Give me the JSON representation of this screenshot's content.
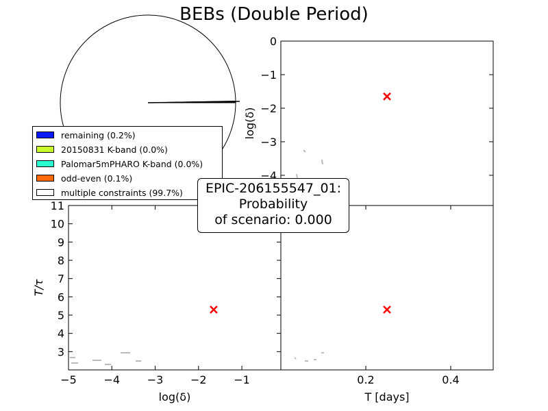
{
  "figure": {
    "title": "BEBs (Double Period)"
  },
  "pie": {
    "slices": [
      {
        "label": "remaining (0.2%)",
        "percent": 0.2,
        "color": "#0a1aff"
      },
      {
        "label": "20150831 K-band (0.0%)",
        "percent": 0.0,
        "color": "#c8ff2a"
      },
      {
        "label": "Palomar5mPHARO K-band (0.0%)",
        "percent": 0.0,
        "color": "#2affd2"
      },
      {
        "label": "odd-even (0.1%)",
        "percent": 0.1,
        "color": "#ff6a0a"
      },
      {
        "label": "multiple constraints (99.7%)",
        "percent": 99.7,
        "color": "#ffffff"
      }
    ]
  },
  "annotation": {
    "line1": "EPIC-206155547_01:",
    "line2": "Probability",
    "line3": "of scenario: 0.000"
  },
  "chart_data": [
    {
      "type": "scatter",
      "panel": "top-right",
      "ylabel": "log(δ)",
      "ylim": [
        -4.9,
        0
      ],
      "yticks": [
        0,
        -1,
        -2,
        -3,
        -4
      ],
      "xlim": [
        0,
        0.5
      ],
      "marker": {
        "x": 0.25,
        "y": -1.65,
        "color": "#ff0000",
        "symbol": "x"
      }
    },
    {
      "type": "scatter",
      "panel": "bottom-left",
      "xlabel": "log(δ)",
      "ylabel": "T/τ",
      "xlim": [
        -5,
        -0.1
      ],
      "ylim": [
        2,
        11
      ],
      "xticks": [
        -5,
        -4,
        -3,
        -2,
        -1
      ],
      "yticks": [
        3,
        4,
        5,
        6,
        7,
        8,
        9,
        10,
        11
      ],
      "marker": {
        "x": -1.65,
        "y": 5.3,
        "color": "#ff0000",
        "symbol": "x"
      }
    },
    {
      "type": "scatter",
      "panel": "bottom-right",
      "xlabel": "T [days]",
      "xlim": [
        0,
        0.5
      ],
      "ylim": [
        2,
        11
      ],
      "xticks": [
        0.2,
        0.4
      ],
      "marker": {
        "x": 0.25,
        "y": 5.3,
        "color": "#ff0000",
        "symbol": "x"
      }
    }
  ]
}
